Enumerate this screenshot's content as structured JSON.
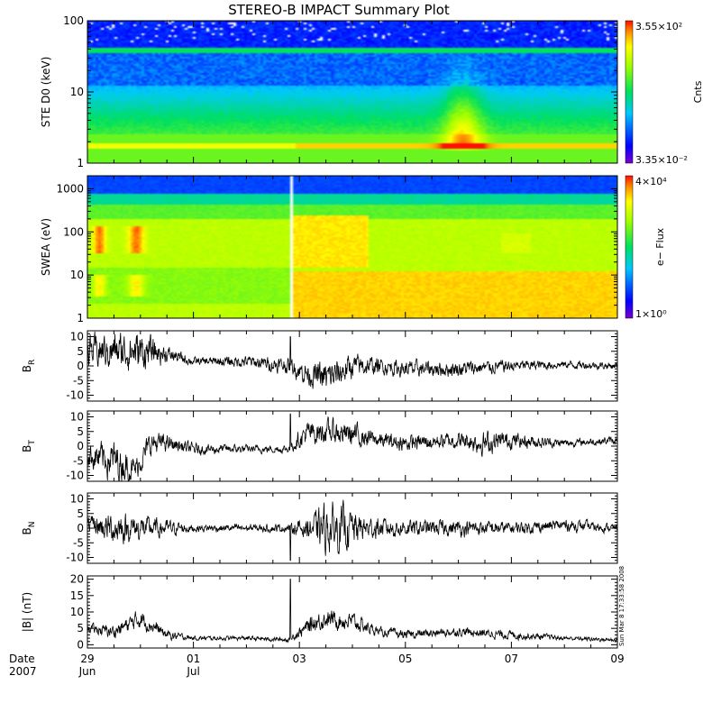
{
  "title": "STEREO-B IMPACT Summary Plot",
  "stamp": "Sun Mar  8 17:33:58 2008",
  "x_axis": {
    "row_label_1": "Date",
    "row_label_2": "2007",
    "start_day": 29,
    "end_day": 39,
    "ticks": [
      {
        "day": 29,
        "label": "29",
        "sublabel": "Jun"
      },
      {
        "day": 31,
        "label": "01",
        "sublabel": "Jul"
      },
      {
        "day": 33,
        "label": "03",
        "sublabel": ""
      },
      {
        "day": 35,
        "label": "05",
        "sublabel": ""
      },
      {
        "day": 37,
        "label": "07",
        "sublabel": ""
      },
      {
        "day": 39,
        "label": "09",
        "sublabel": ""
      }
    ]
  },
  "chart_data": [
    {
      "type": "heatmap",
      "name": "ste",
      "ylabel": "STE D0 (keV)",
      "yscale": "log",
      "ylim": [
        1,
        100
      ],
      "yticks": [
        {
          "v": 1,
          "label": "1"
        },
        {
          "v": 10,
          "label": "10"
        },
        {
          "v": 100,
          "label": "100"
        }
      ],
      "colorbar": {
        "max_label": "3.55×10²",
        "min_label": "3.35×10⁻²",
        "title": "Cnts"
      },
      "data_gap_start_day": null
    },
    {
      "type": "heatmap",
      "name": "swea",
      "ylabel": "SWEA (eV)",
      "yscale": "log",
      "ylim": [
        1,
        2000
      ],
      "yticks": [
        {
          "v": 1,
          "label": "1"
        },
        {
          "v": 10,
          "label": "10"
        },
        {
          "v": 100,
          "label": "100"
        },
        {
          "v": 1000,
          "label": "1000"
        }
      ],
      "colorbar": {
        "max_label": "4×10⁴",
        "min_label": "1×10⁰",
        "title": "e− Flux"
      },
      "data_gap_start_day": 32.85
    },
    {
      "type": "line",
      "name": "br",
      "ylabel": "BR",
      "ylabel_main": "B",
      "ylabel_sub": "R",
      "ylim": [
        -12,
        12
      ],
      "yticks": [
        -10,
        -5,
        0,
        5,
        10
      ],
      "envelope": [
        [
          29,
          5,
          4
        ],
        [
          30,
          5,
          5
        ],
        [
          30.5,
          4,
          2
        ],
        [
          31,
          1.5,
          1
        ],
        [
          32,
          1.5,
          1.5
        ],
        [
          32.8,
          0,
          2
        ],
        [
          33.2,
          -3,
          3
        ],
        [
          33.5,
          -4,
          4
        ],
        [
          33.7,
          -3,
          4
        ],
        [
          34,
          0,
          3
        ],
        [
          34.5,
          0,
          2
        ],
        [
          35,
          -1,
          2
        ],
        [
          36,
          -1,
          2
        ],
        [
          37,
          0,
          1.5
        ],
        [
          38,
          0.5,
          1
        ],
        [
          39,
          0,
          1
        ]
      ],
      "spike": {
        "day": 32.83,
        "value": 10
      }
    },
    {
      "type": "line",
      "name": "bt",
      "ylabel": "BT",
      "ylabel_main": "B",
      "ylabel_sub": "T",
      "ylim": [
        -12,
        12
      ],
      "yticks": [
        -10,
        -5,
        0,
        5,
        10
      ],
      "envelope": [
        [
          29,
          -3,
          3
        ],
        [
          29.5,
          -5,
          5
        ],
        [
          29.9,
          -8,
          3
        ],
        [
          30.2,
          1,
          3
        ],
        [
          30.5,
          1,
          2
        ],
        [
          31,
          -1,
          1.5
        ],
        [
          32,
          -1,
          1
        ],
        [
          32.8,
          -1,
          1
        ],
        [
          33.1,
          4,
          3
        ],
        [
          33.5,
          5,
          3
        ],
        [
          34,
          4,
          3
        ],
        [
          34.5,
          2,
          2
        ],
        [
          35,
          1,
          2
        ],
        [
          36,
          2,
          2
        ],
        [
          36.5,
          1,
          3
        ],
        [
          37,
          2,
          2
        ],
        [
          38,
          1,
          1
        ],
        [
          39,
          2,
          1
        ]
      ],
      "spike": {
        "day": 32.83,
        "value": 11
      }
    },
    {
      "type": "line",
      "name": "bn",
      "ylabel": "BN",
      "ylabel_main": "B",
      "ylabel_sub": "N",
      "ylim": [
        -12,
        12
      ],
      "yticks": [
        -10,
        -5,
        0,
        5,
        10
      ],
      "envelope": [
        [
          29,
          1,
          2
        ],
        [
          29.5,
          0,
          4
        ],
        [
          30,
          0,
          3
        ],
        [
          30.5,
          0,
          2
        ],
        [
          31,
          0,
          1
        ],
        [
          32,
          0,
          1
        ],
        [
          32.8,
          0,
          1
        ],
        [
          33.2,
          0,
          3
        ],
        [
          33.5,
          0,
          6
        ],
        [
          33.8,
          0,
          6
        ],
        [
          34.2,
          0,
          3
        ],
        [
          35,
          0,
          2
        ],
        [
          36,
          0,
          2
        ],
        [
          37,
          0,
          1.5
        ],
        [
          38,
          1,
          1.5
        ],
        [
          39,
          0,
          1
        ]
      ],
      "spike": {
        "day": 32.83,
        "value": -11
      }
    },
    {
      "type": "line",
      "name": "bmag",
      "ylabel": "|B| (nT)",
      "ylim": [
        -1,
        21
      ],
      "yticks": [
        0,
        5,
        10,
        15,
        20
      ],
      "envelope": [
        [
          29,
          5,
          1
        ],
        [
          29.5,
          4,
          1.5
        ],
        [
          30,
          8,
          2
        ],
        [
          30.5,
          3,
          1
        ],
        [
          31,
          2,
          0.5
        ],
        [
          32,
          2,
          0.5
        ],
        [
          32.8,
          1.5,
          0.5
        ],
        [
          33.2,
          6,
          2
        ],
        [
          33.5,
          8,
          2
        ],
        [
          34,
          7,
          2
        ],
        [
          34.5,
          4,
          1
        ],
        [
          35,
          3,
          1
        ],
        [
          36,
          4,
          1
        ],
        [
          37,
          3,
          1
        ],
        [
          38,
          2,
          0.5
        ],
        [
          39,
          1.5,
          0.5
        ]
      ],
      "spike": {
        "day": 32.83,
        "value": 20
      }
    }
  ]
}
